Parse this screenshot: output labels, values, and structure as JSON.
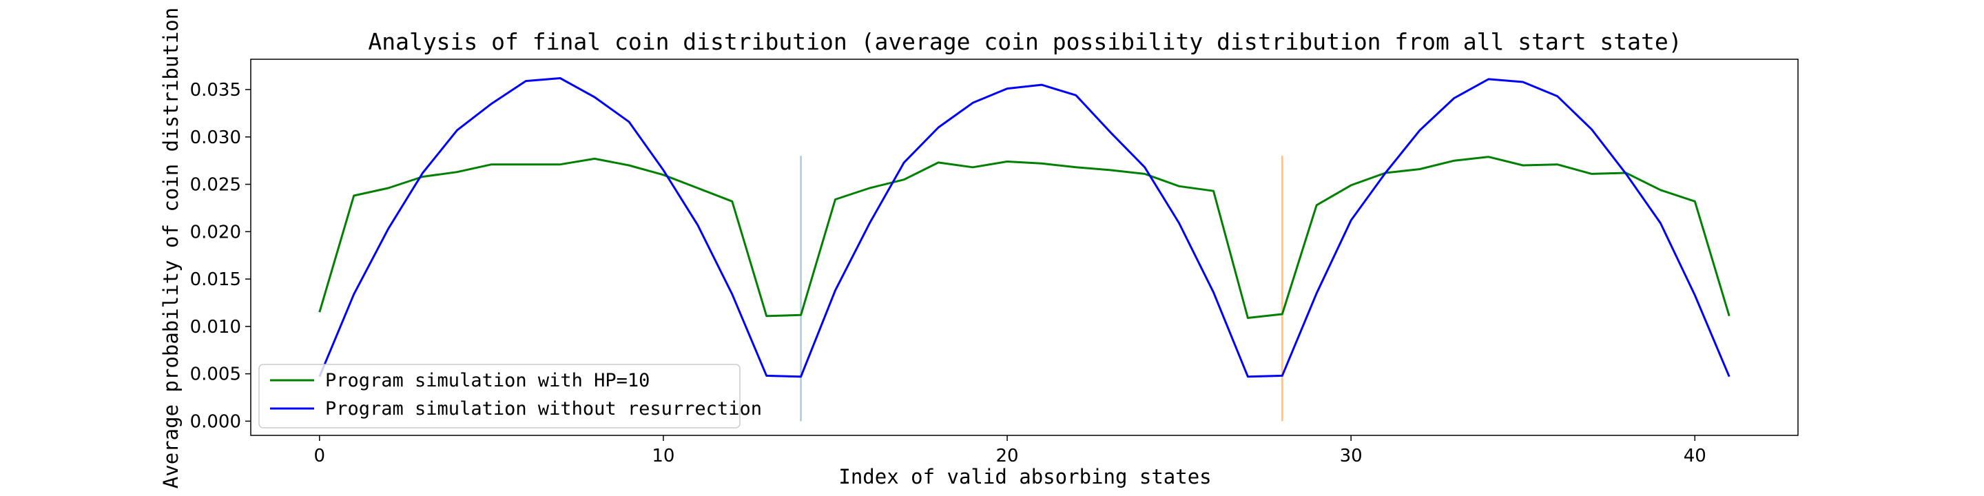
{
  "chart_data": {
    "type": "line",
    "title": "Analysis of final coin distribution (average coin possibility distribution from all start state)",
    "xlabel": "Index of valid absorbing states",
    "ylabel": "Average probability of coin distribution",
    "xlim": [
      -2,
      43
    ],
    "ylim": [
      -0.0015,
      0.0382
    ],
    "xticks": [
      0,
      10,
      20,
      30,
      40
    ],
    "yticks": [
      0.0,
      0.005,
      0.01,
      0.015,
      0.02,
      0.025,
      0.03,
      0.035
    ],
    "ytick_labels": [
      "0.000",
      "0.005",
      "0.010",
      "0.015",
      "0.020",
      "0.025",
      "0.030",
      "0.035"
    ],
    "grid": false,
    "legend_position": "lower-left",
    "series": [
      {
        "name": "Program simulation with HP=10",
        "color": "#008000",
        "x": [
          0,
          1,
          2,
          3,
          4,
          5,
          6,
          7,
          8,
          9,
          10,
          11,
          12,
          13,
          14,
          15,
          16,
          17,
          18,
          19,
          20,
          21,
          22,
          23,
          24,
          25,
          26,
          27,
          28,
          29,
          30,
          31,
          32,
          33,
          34,
          35,
          36,
          37,
          38,
          39,
          40,
          41
        ],
        "values": [
          0.0115,
          0.0238,
          0.0246,
          0.0258,
          0.0263,
          0.0271,
          0.0271,
          0.0271,
          0.0277,
          0.027,
          0.026,
          0.0246,
          0.0232,
          0.0111,
          0.0112,
          0.0234,
          0.0246,
          0.0255,
          0.0273,
          0.0268,
          0.0274,
          0.0272,
          0.0268,
          0.0265,
          0.0261,
          0.0248,
          0.0243,
          0.0109,
          0.0113,
          0.0228,
          0.0249,
          0.0262,
          0.0266,
          0.0275,
          0.0279,
          0.027,
          0.0271,
          0.0261,
          0.0262,
          0.0244,
          0.0232,
          0.0111
        ]
      },
      {
        "name": "Program simulation without resurrection",
        "color": "#0000ff",
        "x": [
          0,
          1,
          2,
          3,
          4,
          5,
          6,
          7,
          8,
          9,
          10,
          11,
          12,
          13,
          14,
          15,
          16,
          17,
          18,
          19,
          20,
          21,
          22,
          23,
          24,
          25,
          26,
          27,
          28,
          29,
          30,
          31,
          32,
          33,
          34,
          35,
          36,
          37,
          38,
          39,
          40,
          41
        ],
        "values": [
          0.0047,
          0.0134,
          0.0203,
          0.0262,
          0.0307,
          0.0335,
          0.0359,
          0.0362,
          0.0342,
          0.0316,
          0.0265,
          0.0207,
          0.0134,
          0.0048,
          0.0047,
          0.0138,
          0.0209,
          0.0273,
          0.031,
          0.0336,
          0.0351,
          0.0355,
          0.0344,
          0.0305,
          0.0268,
          0.0209,
          0.0136,
          0.0047,
          0.0048,
          0.0135,
          0.0212,
          0.0262,
          0.0307,
          0.0341,
          0.0361,
          0.0358,
          0.0343,
          0.0308,
          0.0261,
          0.0209,
          0.0133,
          0.0047
        ]
      }
    ],
    "vertical_lines": [
      {
        "x": 14,
        "y_start": 0.0,
        "y_end": 0.028,
        "color": "#a6cbe3"
      },
      {
        "x": 28,
        "y_start": 0.0,
        "y_end": 0.028,
        "color": "#ffbe86"
      }
    ]
  }
}
